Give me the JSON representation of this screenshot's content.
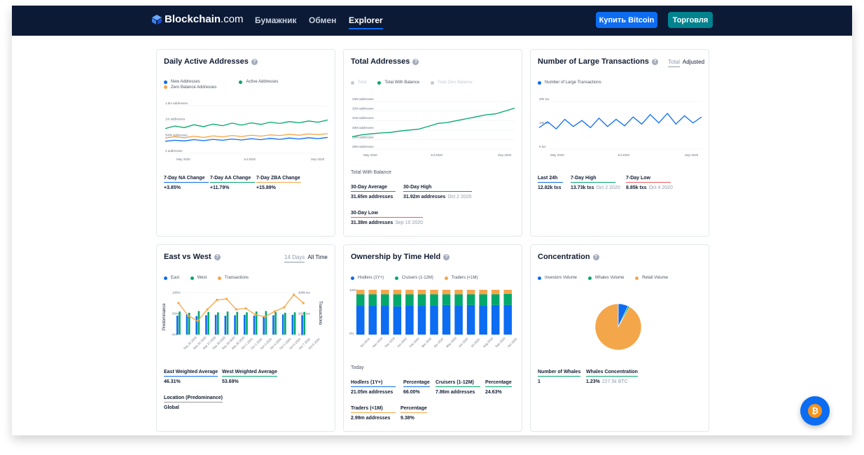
{
  "nav": {
    "logo_name": "Blockchain",
    "logo_domain": ".com",
    "links": [
      "Бумажник",
      "Обмен",
      "Explorer"
    ],
    "buy_button": "Купить Bitcoin",
    "trade_button": "Торговля"
  },
  "colors": {
    "navy": "#0c1a35",
    "blue": "#0c6cf2",
    "green": "#00a86b",
    "orange": "#f4a64a",
    "teal": "#00838f",
    "grey": "#c4c9d2",
    "red": "#e85c5c"
  },
  "cards": {
    "daily_active": {
      "title": "Daily Active Addresses",
      "legend": [
        "New Addresses",
        "Active Addresses",
        "Zero Balance Addresses"
      ],
      "stats": [
        {
          "label": "7-Day NA Change",
          "value": "+3.85%"
        },
        {
          "label": "7-Day AA Change",
          "value": "+11.79%"
        },
        {
          "label": "7-Day ZBA Change",
          "value": "+15.89%"
        }
      ]
    },
    "total_addresses": {
      "title": "Total Addresses",
      "legend": [
        "Total",
        "Total With Balance",
        "Total Zero Balance"
      ],
      "section_label": "Total With Balance",
      "stats": [
        {
          "label": "30-Day Average",
          "value": "31.65m addresses",
          "sub": ""
        },
        {
          "label": "30-Day High",
          "value": "31.92m addresses",
          "sub": "Oct 2 2020"
        },
        {
          "label": "30-Day Low",
          "value": "31.38m addresses",
          "sub": "Sep 10 2020"
        }
      ]
    },
    "large_tx": {
      "title": "Number of Large Transactions",
      "toggle": [
        "Total",
        "Adjusted"
      ],
      "legend": [
        "Number of Large Transactions"
      ],
      "stats": [
        {
          "label": "Last 24h",
          "value": "12.82k txs",
          "sub": ""
        },
        {
          "label": "7-Day High",
          "value": "13.73k txs",
          "sub": "Oct 2 2020"
        },
        {
          "label": "7-Day Low",
          "value": "8.85k txs",
          "sub": "Oct 4 2020"
        }
      ]
    },
    "east_west": {
      "title": "East vs West",
      "toggle": [
        "14 Days",
        "All Time"
      ],
      "legend": [
        "East",
        "West",
        "Transactions"
      ],
      "stats": [
        {
          "label": "East Weighted Average",
          "value": "46.31%"
        },
        {
          "label": "West Weighted Average",
          "value": "53.69%"
        },
        {
          "label": "Location (Predominance)",
          "value": "Global"
        }
      ]
    },
    "ownership": {
      "title": "Ownership by Time Held",
      "legend": [
        "Hodlers (1Y+)",
        "Cruisers (1-12M)",
        "Traders (<1M)"
      ],
      "section_label": "Today",
      "stats": [
        {
          "label": "Hodlers (1Y+)",
          "value": "21.05m addresses"
        },
        {
          "label": "Percentage",
          "value": "66.00%"
        },
        {
          "label": "Cruisers (1-12M)",
          "value": "7.86m addresses"
        },
        {
          "label": "Percentage",
          "value": "24.63%"
        },
        {
          "label": "Traders (<1M)",
          "value": "2.99m addresses"
        },
        {
          "label": "Percentage",
          "value": "9.38%"
        }
      ]
    },
    "concentration": {
      "title": "Concentration",
      "legend": [
        "Investors Volume",
        "Whales Volume",
        "Retail Volume"
      ],
      "stats": [
        {
          "label": "Number of Whales",
          "value": "1",
          "sub": ""
        },
        {
          "label": "Whales Concentration",
          "value": "1.23%",
          "sub": "227.5k BTC"
        }
      ]
    }
  },
  "chart_data": [
    {
      "type": "line",
      "chart": "daily_active",
      "y_ticks": [
        "1.5m addresses",
        "1m addresses",
        "500k addresses",
        "0 addresses"
      ],
      "ylim": [
        0,
        1500000
      ],
      "x_ticks": [
        "May 2020",
        "Jul 2020",
        "Sep 2020"
      ],
      "series": [
        {
          "name": "Active Addresses",
          "values": [
            780000,
            860000,
            810000,
            900000,
            840000,
            920000,
            870000,
            950000,
            890000,
            960000,
            910000,
            980000,
            940000,
            1000000,
            960000,
            1020000,
            980000,
            1050000
          ]
        },
        {
          "name": "Zero Balance Addresses",
          "values": [
            480000,
            520000,
            490000,
            540000,
            500000,
            550000,
            520000,
            560000,
            530000,
            570000,
            540000,
            580000,
            560000,
            600000,
            570000,
            610000,
            590000,
            620000
          ]
        },
        {
          "name": "New Addresses",
          "values": [
            380000,
            410000,
            390000,
            430000,
            400000,
            440000,
            410000,
            450000,
            420000,
            460000,
            430000,
            470000,
            440000,
            480000,
            450000,
            490000,
            460000,
            500000
          ]
        }
      ]
    },
    {
      "type": "line",
      "chart": "total_addresses",
      "y_ticks": [
        "33M addresses",
        "32M addresses",
        "31M addresses",
        "30M addresses",
        "29M addresses",
        "28M addresses"
      ],
      "ylim": [
        28000000,
        33000000
      ],
      "x_ticks": [
        "May 2020",
        "Jul 2020",
        "Sep 2020"
      ],
      "series": [
        {
          "name": "Total With Balance",
          "values": [
            29300000,
            29500000,
            29600000,
            29700000,
            29750000,
            29900000,
            30000000,
            30100000,
            30400000,
            30700000,
            30800000,
            31000000,
            31200000,
            31400000,
            31600000,
            31700000,
            32000000,
            32300000
          ]
        }
      ]
    },
    {
      "type": "line",
      "chart": "large_tx",
      "y_ticks": [
        "20k txs",
        "10k txs",
        "0 txs"
      ],
      "ylim": [
        0,
        20000
      ],
      "x_ticks": [
        "May 2020",
        "Jul 2020",
        "Sep 2020"
      ],
      "series": [
        {
          "name": "Number of Large Transactions",
          "values": [
            9000,
            11500,
            8500,
            12500,
            9500,
            12000,
            9000,
            13000,
            9500,
            12500,
            9800,
            13500,
            10500,
            14500,
            11000,
            15000,
            10500,
            14000,
            11000,
            13500
          ]
        }
      ]
    },
    {
      "type": "bar",
      "chart": "east_west",
      "y_left_ticks": [
        "100%",
        "50%",
        "0%"
      ],
      "y_right_ticks": [
        "400k txs",
        "200k txs",
        "0 txs"
      ],
      "ylabel_left": "Predominance",
      "ylabel_right": "Transactions",
      "categories": [
        "Sep 25 2020",
        "Sep 26 2020",
        "Sep 27 2020",
        "Sep 28 2020",
        "Sep 29 2020",
        "Sep 30 2020",
        "Oct 1 2020",
        "Oct 2 2020",
        "Oct 3 2020",
        "Oct 4 2020",
        "Oct 5 2020",
        "Oct 6 2020",
        "Oct 7 2020",
        "Oct 8 2020"
      ],
      "series": [
        {
          "name": "East",
          "values": [
            45,
            48,
            44,
            46,
            47,
            45,
            46,
            47,
            45,
            44,
            46,
            48,
            47,
            46
          ]
        },
        {
          "name": "West",
          "values": [
            55,
            52,
            56,
            54,
            53,
            55,
            54,
            53,
            55,
            56,
            54,
            52,
            53,
            54
          ]
        },
        {
          "name": "Transactions",
          "values": [
            300000,
            180000,
            130000,
            240000,
            330000,
            340000,
            240000,
            250000,
            190000,
            170000,
            220000,
            260000,
            380000,
            300000
          ]
        }
      ]
    },
    {
      "type": "bar",
      "chart": "ownership",
      "y_ticks": [
        "100%",
        "0%"
      ],
      "categories": [
        "Oct 2019",
        "Nov 2019",
        "Dec 2019",
        "Jan 2020",
        "Feb 2020",
        "Mar 2020",
        "Apr 2020",
        "May 2020",
        "Jun 2020",
        "Jul 2020",
        "Aug 2020",
        "Sep 2020",
        "Oct 2020"
      ],
      "series": [
        {
          "name": "Hodlers (1Y+)",
          "values": [
            64,
            65,
            64,
            63,
            65,
            64,
            65,
            66,
            65,
            66,
            65,
            66,
            66
          ]
        },
        {
          "name": "Cruisers (1-12M)",
          "values": [
            26,
            25,
            26,
            27,
            25,
            26,
            25,
            24,
            25,
            24,
            25,
            24,
            25
          ]
        },
        {
          "name": "Traders (<1M)",
          "values": [
            10,
            10,
            10,
            10,
            10,
            10,
            10,
            10,
            10,
            10,
            10,
            10,
            9
          ]
        }
      ]
    },
    {
      "type": "pie",
      "chart": "concentration",
      "categories": [
        "Investors Volume",
        "Whales Volume",
        "Retail Volume"
      ],
      "values": [
        7,
        1.23,
        91.77
      ]
    }
  ]
}
